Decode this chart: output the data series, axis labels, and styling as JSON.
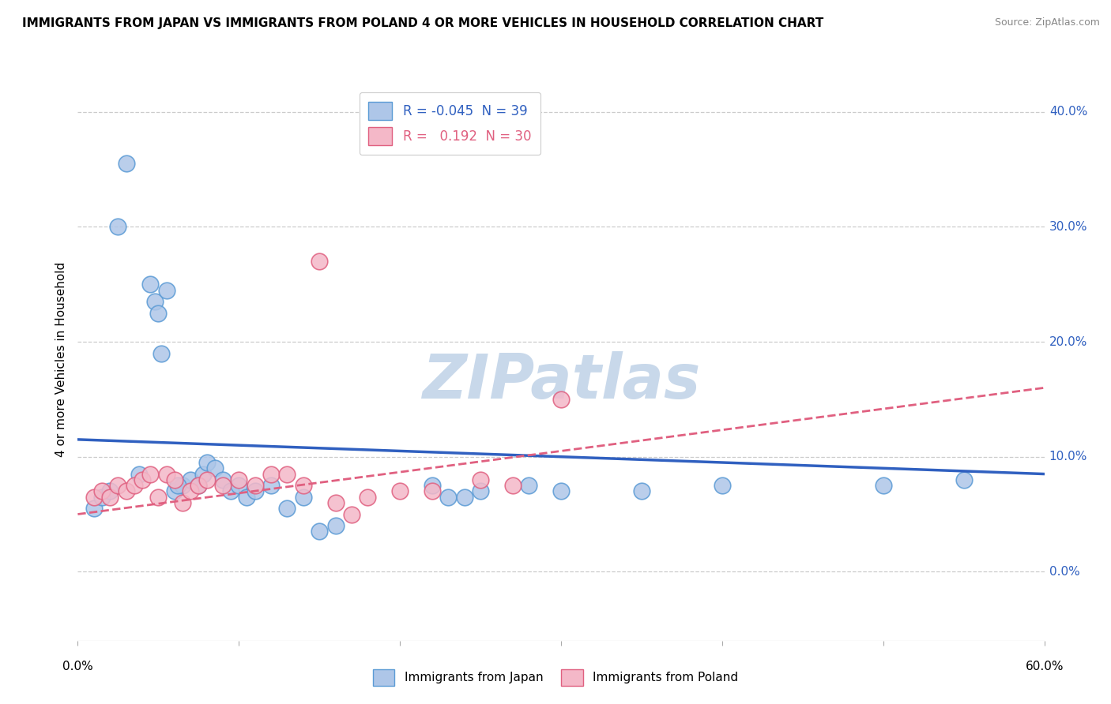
{
  "title": "IMMIGRANTS FROM JAPAN VS IMMIGRANTS FROM POLAND 4 OR MORE VEHICLES IN HOUSEHOLD CORRELATION CHART",
  "source": "Source: ZipAtlas.com",
  "ylabel": "4 or more Vehicles in Household",
  "ytick_vals": [
    0,
    10,
    20,
    30,
    40
  ],
  "xlim": [
    0,
    60
  ],
  "ylim": [
    -6,
    43
  ],
  "japan_R": -0.045,
  "japan_N": 39,
  "poland_R": 0.192,
  "poland_N": 30,
  "japan_color": "#aec6e8",
  "japan_edge": "#5b9bd5",
  "poland_color": "#f4b8c8",
  "poland_edge": "#e06080",
  "japan_line_color": "#3060c0",
  "poland_line_color": "#e06080",
  "background": "#ffffff",
  "grid_color": "#cccccc",
  "watermark_color": "#c8d8ea",
  "japan_x": [
    2.5,
    3.0,
    4.5,
    4.8,
    5.0,
    5.2,
    5.5,
    6.0,
    6.5,
    7.0,
    7.5,
    7.8,
    8.0,
    8.5,
    9.0,
    9.5,
    10.0,
    10.5,
    11.0,
    12.0,
    13.0,
    14.0,
    15.0,
    16.0,
    22.0,
    23.0,
    24.0,
    25.0,
    28.0,
    30.0,
    35.0,
    40.0,
    50.0,
    55.0,
    1.0,
    1.5,
    2.0,
    3.8,
    6.2
  ],
  "japan_y": [
    30.0,
    35.5,
    25.0,
    23.5,
    22.5,
    19.0,
    24.5,
    7.0,
    7.5,
    8.0,
    7.5,
    8.5,
    9.5,
    9.0,
    8.0,
    7.0,
    7.5,
    6.5,
    7.0,
    7.5,
    5.5,
    6.5,
    3.5,
    4.0,
    7.5,
    6.5,
    6.5,
    7.0,
    7.5,
    7.0,
    7.0,
    7.5,
    7.5,
    8.0,
    5.5,
    6.5,
    7.0,
    8.5,
    7.5
  ],
  "poland_x": [
    1.0,
    1.5,
    2.0,
    2.5,
    3.0,
    3.5,
    4.0,
    4.5,
    5.0,
    5.5,
    6.0,
    6.5,
    7.0,
    7.5,
    8.0,
    9.0,
    10.0,
    11.0,
    12.0,
    13.0,
    14.0,
    15.0,
    16.0,
    17.0,
    18.0,
    20.0,
    22.0,
    25.0,
    27.0,
    30.0
  ],
  "poland_y": [
    6.5,
    7.0,
    6.5,
    7.5,
    7.0,
    7.5,
    8.0,
    8.5,
    6.5,
    8.5,
    8.0,
    6.0,
    7.0,
    7.5,
    8.0,
    7.5,
    8.0,
    7.5,
    8.5,
    8.5,
    7.5,
    27.0,
    6.0,
    5.0,
    6.5,
    7.0,
    7.0,
    8.0,
    7.5,
    15.0
  ]
}
